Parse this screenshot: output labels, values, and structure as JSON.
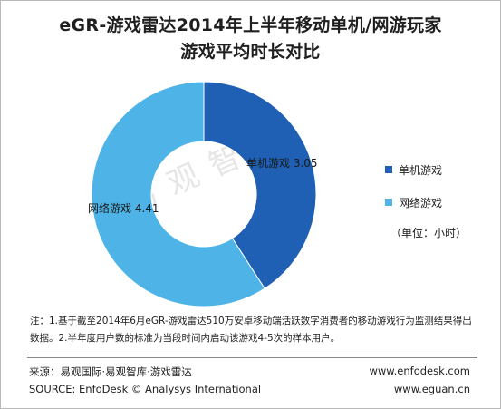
{
  "title_line1": "eGR-游戏雷达2014年上半年移动单机/网游玩家",
  "title_line2": "游戏平均时长对比",
  "chart_data": {
    "type": "pie",
    "donut": true,
    "categories": [
      "单机游戏",
      "网络游戏"
    ],
    "values": [
      3.05,
      4.41
    ],
    "colors": [
      "#1f5fb4",
      "#4eb3e6"
    ],
    "labels": [
      "单机游戏 3.05",
      "网络游戏 4.41"
    ],
    "legend": [
      "单机游戏",
      "网络游戏"
    ],
    "legend_position": "right",
    "unit": "（单位：小时）"
  },
  "watermark": "易观智库",
  "note": "注：1.基于截至2014年6月eGR-游戏雷达510万安卓移动端活跃数字消费者的移动游戏行为监测结果得出数据。2.半年度用户数的标准为当段时间内启动该游戏4-5次的样本用户。",
  "source_cn": "来源：易观国际·易观智库·游戏雷达",
  "source_en": "SOURCE: EnfoDesk © Analysys International",
  "site1": "www.enfodesk.com",
  "site2": "www.eguan.cn"
}
